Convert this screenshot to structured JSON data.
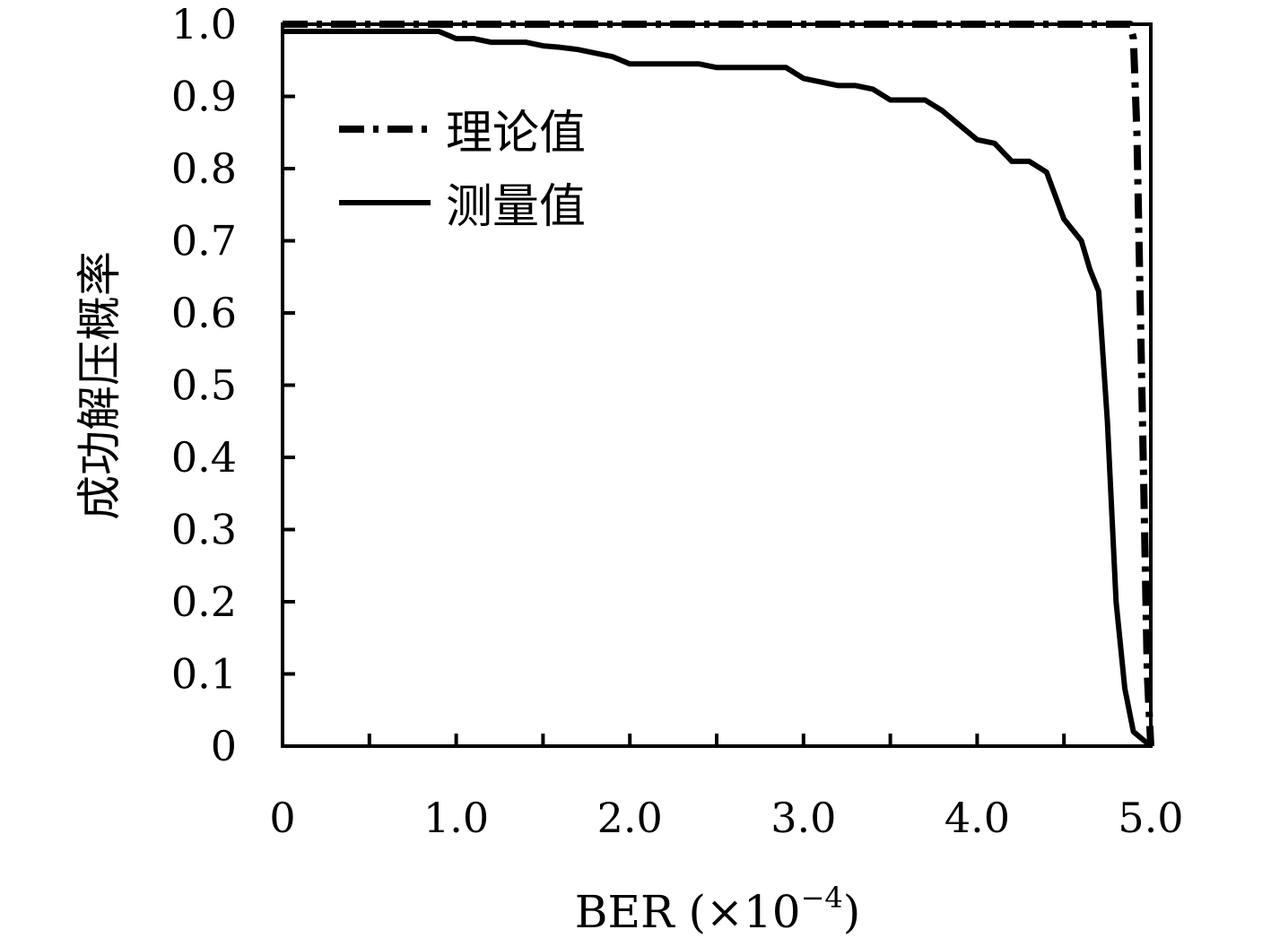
{
  "chart_data": {
    "type": "line",
    "xlabel": "BER (×10",
    "xlabel_exponent": "−4",
    "xlabel_close": ")",
    "ylabel": "成功解压概率",
    "xlim": [
      0,
      5.0
    ],
    "ylim": [
      0,
      1.0
    ],
    "x_ticks": [
      0,
      1.0,
      2.0,
      3.0,
      4.0,
      5.0
    ],
    "x_tick_labels": [
      "0",
      "1.0",
      "2.0",
      "3.0",
      "4.0",
      "5.0"
    ],
    "y_ticks": [
      0,
      0.1,
      0.2,
      0.3,
      0.4,
      0.5,
      0.6,
      0.7,
      0.8,
      0.9,
      1.0
    ],
    "y_tick_labels": [
      "0",
      "0.1",
      "0.2",
      "0.3",
      "0.4",
      "0.5",
      "0.6",
      "0.7",
      "0.8",
      "0.9",
      "1.0"
    ],
    "grid": false,
    "legend_position": "upper-left",
    "series": [
      {
        "name": "理论值",
        "style": "dash-dot",
        "color": "#000000",
        "points": [
          [
            0,
            1.0
          ],
          [
            4.88,
            1.0
          ],
          [
            4.9,
            0.98
          ],
          [
            4.92,
            0.85
          ],
          [
            4.94,
            0.6
          ],
          [
            4.96,
            0.35
          ],
          [
            4.98,
            0.1
          ],
          [
            5.0,
            0.0
          ]
        ]
      },
      {
        "name": "测量值",
        "style": "solid",
        "color": "#000000",
        "points": [
          [
            0,
            0.99
          ],
          [
            0.1,
            0.99
          ],
          [
            0.2,
            0.99
          ],
          [
            0.3,
            0.99
          ],
          [
            0.4,
            0.99
          ],
          [
            0.5,
            0.99
          ],
          [
            0.6,
            0.99
          ],
          [
            0.7,
            0.99
          ],
          [
            0.8,
            0.99
          ],
          [
            0.9,
            0.99
          ],
          [
            1.0,
            0.98
          ],
          [
            1.1,
            0.98
          ],
          [
            1.2,
            0.975
          ],
          [
            1.3,
            0.975
          ],
          [
            1.4,
            0.975
          ],
          [
            1.5,
            0.97
          ],
          [
            1.6,
            0.968
          ],
          [
            1.7,
            0.965
          ],
          [
            1.8,
            0.96
          ],
          [
            1.9,
            0.955
          ],
          [
            2.0,
            0.945
          ],
          [
            2.1,
            0.945
          ],
          [
            2.2,
            0.945
          ],
          [
            2.3,
            0.945
          ],
          [
            2.4,
            0.945
          ],
          [
            2.5,
            0.94
          ],
          [
            2.6,
            0.94
          ],
          [
            2.7,
            0.94
          ],
          [
            2.8,
            0.94
          ],
          [
            2.9,
            0.94
          ],
          [
            3.0,
            0.925
          ],
          [
            3.1,
            0.92
          ],
          [
            3.2,
            0.915
          ],
          [
            3.3,
            0.915
          ],
          [
            3.4,
            0.91
          ],
          [
            3.5,
            0.895
          ],
          [
            3.6,
            0.895
          ],
          [
            3.7,
            0.895
          ],
          [
            3.8,
            0.88
          ],
          [
            3.9,
            0.86
          ],
          [
            4.0,
            0.84
          ],
          [
            4.1,
            0.835
          ],
          [
            4.2,
            0.81
          ],
          [
            4.3,
            0.81
          ],
          [
            4.4,
            0.795
          ],
          [
            4.5,
            0.73
          ],
          [
            4.6,
            0.7
          ],
          [
            4.65,
            0.66
          ],
          [
            4.7,
            0.63
          ],
          [
            4.75,
            0.45
          ],
          [
            4.8,
            0.2
          ],
          [
            4.85,
            0.08
          ],
          [
            4.9,
            0.02
          ],
          [
            5.0,
            0.0
          ]
        ]
      }
    ]
  }
}
